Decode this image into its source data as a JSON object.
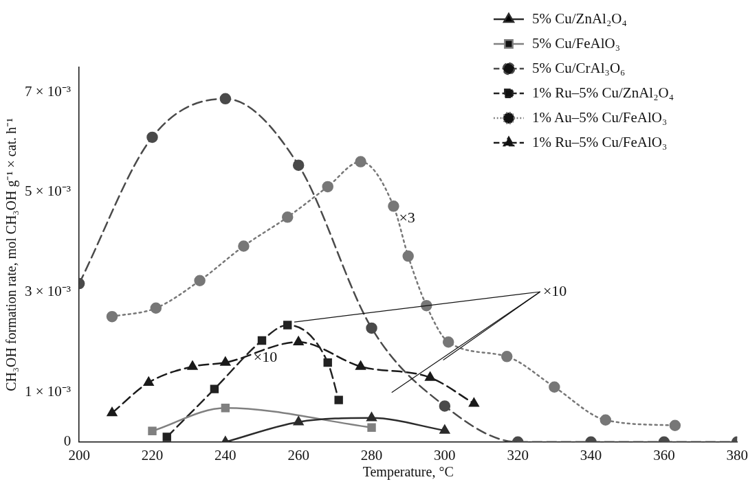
{
  "chart_data": {
    "type": "line",
    "xlabel": "Temperature, °C",
    "ylabel": "CH₃OH formation rate, mol CH₃OH g⁻¹ × cat. h⁻¹",
    "xlim": [
      200,
      380
    ],
    "xticks": [
      200,
      220,
      240,
      260,
      280,
      300,
      320,
      340,
      360,
      380
    ],
    "ylim": [
      0,
      0.0075
    ],
    "yticks": [
      {
        "value": 0,
        "label": "0"
      },
      {
        "value": 0.001,
        "label": "1 × 10⁻³"
      },
      {
        "value": 0.003,
        "label": "3 × 10⁻³"
      },
      {
        "value": 0.005,
        "label": "5 × 10⁻³"
      },
      {
        "value": 0.007,
        "label": "7 × 10⁻³"
      }
    ],
    "grid": false,
    "legend": "top right",
    "series": [
      {
        "name": "5% Cu/ZnAl₂O₄",
        "color": "#2b2b2b",
        "marker": "triangle",
        "line_style": "solid",
        "x": [
          240,
          260,
          280,
          300
        ],
        "values": [
          0,
          0.0004,
          0.00048,
          0.00023
        ]
      },
      {
        "name": "5% Cu/FeAlO₃",
        "color": "#808080",
        "marker": "square",
        "line_style": "solid",
        "x": [
          220,
          240,
          280
        ],
        "values": [
          0.00022,
          0.00068,
          0.00029
        ]
      },
      {
        "name": "5% Cu/CrAl₃O₆",
        "color": "#4a4a4a",
        "marker": "circle",
        "line_style": "dashed",
        "x": [
          200,
          220,
          240,
          260,
          280,
          300,
          320,
          340,
          360,
          380
        ],
        "values": [
          0.00317,
          0.0061,
          0.00687,
          0.00554,
          0.00228,
          0.00072,
          0,
          0,
          0,
          0
        ]
      },
      {
        "name": "1% Ru–5% Cu/ZnAl₂O₄",
        "color": "#222222",
        "marker": "square",
        "line_style": "dashed",
        "x": [
          224,
          237,
          250,
          257,
          268,
          271
        ],
        "values": [
          0.0001,
          0.00106,
          0.00203,
          0.00234,
          0.00159,
          0.00084
        ]
      },
      {
        "name": "1% Au–5% Cu/FeAlO₃",
        "color": "#777777",
        "marker": "circle",
        "line_style": "dotted",
        "x": [
          209,
          221,
          233,
          245,
          257,
          268,
          277,
          286,
          290,
          295,
          301,
          317,
          330,
          344,
          363
        ],
        "values": [
          0.00251,
          0.00268,
          0.00323,
          0.00392,
          0.0045,
          0.00511,
          0.00561,
          0.00472,
          0.00372,
          0.00273,
          0.002,
          0.00171,
          0.0011,
          0.00044,
          0.00033
        ]
      },
      {
        "name": "1% Ru–5% Cu/FeAlO₃",
        "color": "#1a1a1a",
        "marker": "triangle",
        "line_style": "dashed",
        "x": [
          209,
          219,
          231,
          240,
          260,
          277,
          296,
          308
        ],
        "values": [
          0.00058,
          0.00119,
          0.00151,
          0.00159,
          0.002,
          0.00151,
          0.00129,
          0.00077
        ]
      }
    ],
    "annotations": [
      {
        "text": "×3",
        "x": 286,
        "y": 0.00472
      },
      {
        "text": "×10",
        "x": 247.7,
        "y": 0.00168
      },
      "×10"
    ]
  }
}
